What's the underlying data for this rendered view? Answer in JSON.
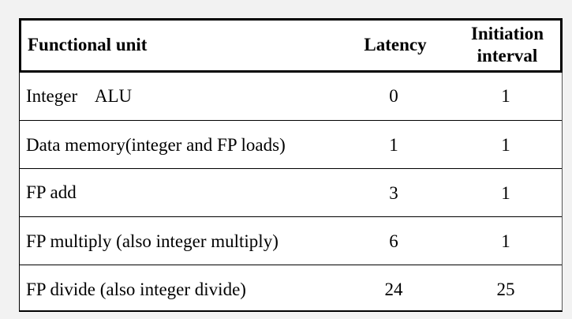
{
  "table": {
    "headers": {
      "functional_unit": "Functional unit",
      "latency": "Latency",
      "initiation_line1": "Initiation",
      "initiation_line2": "interval"
    },
    "rows": [
      {
        "unit": "Integer    ALU",
        "latency": "0",
        "interval": "1"
      },
      {
        "unit": "Data memory(integer and FP loads)",
        "latency": "1",
        "interval": "1"
      },
      {
        "unit": "FP add",
        "latency": "3",
        "interval": "1"
      },
      {
        "unit": "FP multiply (also integer multiply)",
        "latency": "6",
        "interval": "1"
      },
      {
        "unit": "FP divide (also integer divide)",
        "latency": "24",
        "interval": "25"
      }
    ]
  }
}
